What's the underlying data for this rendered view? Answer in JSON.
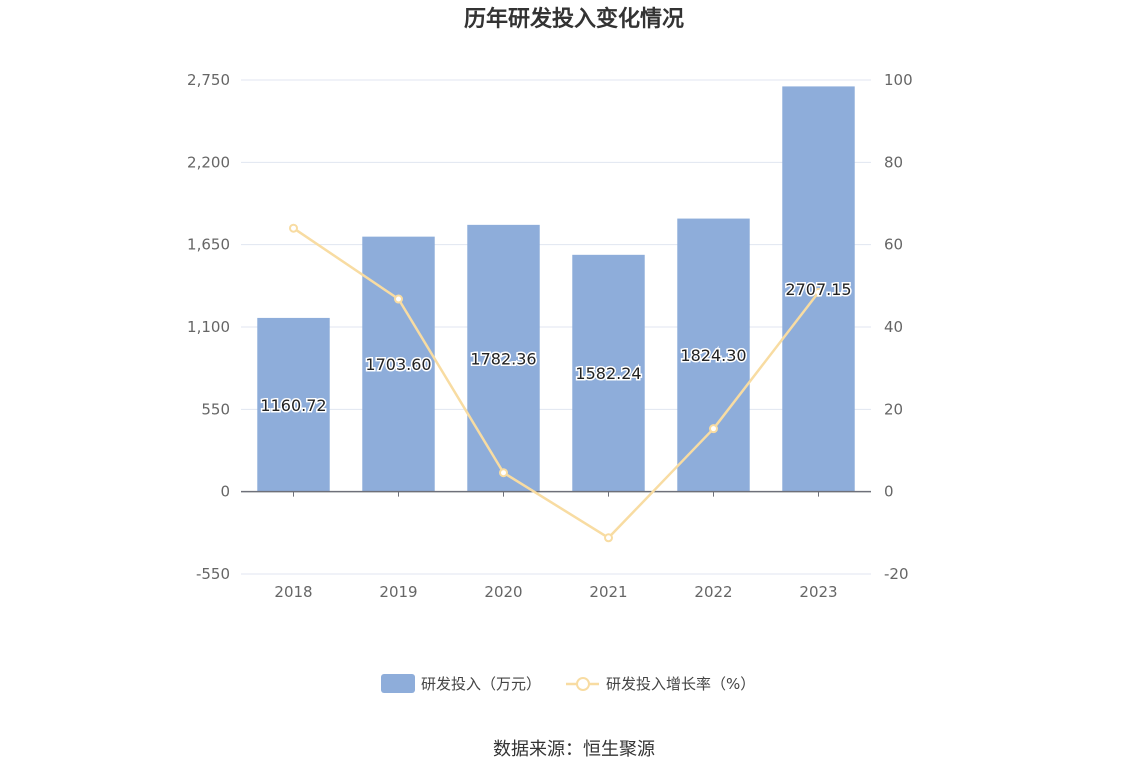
{
  "chart_data": {
    "type": "bar",
    "title": "历年研发投入变化情况",
    "categories": [
      "2018",
      "2019",
      "2020",
      "2021",
      "2022",
      "2023"
    ],
    "series": [
      {
        "name": "研发投入（万元）",
        "type": "bar",
        "axis": "left",
        "color": "#8eadda",
        "values": [
          1160.72,
          1703.6,
          1782.36,
          1582.24,
          1824.3,
          2707.15
        ],
        "labels": [
          "1160.72",
          "1703.60",
          "1782.36",
          "1582.24",
          "1824.30",
          "2707.15"
        ]
      },
      {
        "name": "研发投入增长率（%）",
        "type": "line",
        "axis": "right",
        "color": "#f8dca2",
        "values": [
          64.0,
          46.8,
          4.6,
          -11.2,
          15.3,
          48.4
        ]
      }
    ],
    "y_left": {
      "min": -550,
      "max": 2750,
      "ticks": [
        -550,
        0,
        550,
        1100,
        1650,
        2200,
        2750
      ],
      "tick_labels": [
        "-550",
        "0",
        "550",
        "1,100",
        "1,650",
        "2,200",
        "2,750"
      ]
    },
    "y_right": {
      "min": -20,
      "max": 100,
      "ticks": [
        -20,
        0,
        20,
        40,
        60,
        80,
        100
      ],
      "tick_labels": [
        "-20",
        "0",
        "20",
        "40",
        "60",
        "80",
        "100"
      ]
    },
    "grid": true,
    "legend_position": "bottom"
  },
  "source_text": "数据来源：恒生聚源"
}
